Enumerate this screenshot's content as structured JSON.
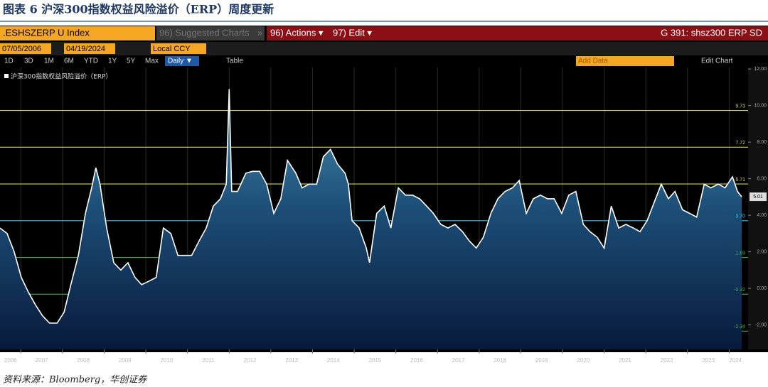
{
  "header": {
    "title": "图表 6 沪深300指数权益风险溢价（ERP）周度更新"
  },
  "ui": {
    "index_field": ".ESHSZERP U Index",
    "suggested": "96) Suggested Charts",
    "more": "»",
    "actions": "96) Actions ▾",
    "edit": "97) Edit ▾",
    "chart_id": "G 391: shsz300 ERP SD",
    "start_date": "07/05/2006",
    "end_date": "04/19/2024",
    "currency": "Local CCY",
    "periods": [
      "1D",
      "3D",
      "1M",
      "6M",
      "YTD",
      "1Y",
      "5Y",
      "Max"
    ],
    "frequency": "Daily ▼",
    "table": "Table",
    "add_data": "Add Data",
    "edit_chart": "Edit Chart"
  },
  "chart_data": {
    "type": "area-line",
    "x": [
      2006.5,
      2006.67,
      2006.84,
      2007.01,
      2007.18,
      2007.35,
      2007.52,
      2007.69,
      2007.87,
      2008.04,
      2008.2,
      2008.38,
      2008.55,
      2008.7,
      2008.8,
      2008.9,
      2009.06,
      2009.23,
      2009.4,
      2009.57,
      2009.74,
      2009.9,
      2010.08,
      2010.25,
      2010.42,
      2010.6,
      2010.77,
      2010.94,
      2011.1,
      2011.28,
      2011.45,
      2011.62,
      2011.79,
      2011.93,
      2012.0,
      2012.06,
      2012.2,
      2012.4,
      2012.56,
      2012.73,
      2012.9,
      2013.07,
      2013.24,
      2013.4,
      2013.6,
      2013.75,
      2013.92,
      2014.1,
      2014.26,
      2014.43,
      2014.6,
      2014.78,
      2014.86,
      2014.95,
      2015.12,
      2015.29,
      2015.37,
      2015.54,
      2015.72,
      2015.88,
      2016.06,
      2016.23,
      2016.4,
      2016.57,
      2016.74,
      2016.9,
      2017.08,
      2017.25,
      2017.42,
      2017.6,
      2017.76,
      2017.93,
      2018.1,
      2018.28,
      2018.45,
      2018.62,
      2018.8,
      2018.96,
      2019.13,
      2019.3,
      2019.47,
      2019.64,
      2019.8,
      2019.98,
      2020.15,
      2020.32,
      2020.5,
      2020.66,
      2020.83,
      2021.0,
      2021.17,
      2021.35,
      2021.52,
      2021.7,
      2021.86,
      2022.03,
      2022.2,
      2022.37,
      2022.54,
      2022.7,
      2022.88,
      2023.05,
      2023.22,
      2023.4,
      2023.56,
      2023.74,
      2023.9,
      2024.08,
      2024.2,
      2024.3
    ],
    "series": [
      {
        "name": "沪深300指数权益风险溢价（ERP）",
        "color": "#ffffff",
        "values": [
          3.3,
          3.0,
          2.0,
          0.6,
          -0.2,
          -0.9,
          -1.5,
          -1.9,
          -1.9,
          -1.3,
          0.2,
          1.8,
          4.1,
          5.5,
          6.6,
          5.7,
          3.3,
          1.4,
          1.0,
          1.4,
          0.6,
          0.2,
          0.4,
          0.6,
          3.3,
          3.0,
          1.8,
          1.8,
          1.8,
          2.6,
          3.3,
          4.5,
          4.9,
          5.7,
          10.9,
          5.3,
          5.3,
          6.3,
          6.4,
          6.4,
          5.7,
          4.1,
          4.9,
          7.0,
          6.3,
          5.5,
          5.7,
          5.7,
          7.2,
          7.6,
          6.8,
          6.3,
          5.7,
          3.7,
          3.3,
          2.2,
          1.4,
          4.1,
          4.5,
          3.3,
          5.5,
          5.1,
          5.1,
          4.9,
          4.5,
          4.1,
          3.5,
          3.3,
          3.5,
          3.1,
          2.6,
          2.2,
          2.8,
          4.1,
          4.9,
          5.3,
          5.5,
          5.9,
          4.1,
          4.9,
          5.1,
          4.9,
          4.9,
          4.1,
          5.1,
          5.3,
          3.5,
          3.1,
          2.8,
          2.2,
          4.5,
          3.3,
          3.5,
          3.3,
          3.1,
          3.7,
          4.7,
          5.7,
          4.9,
          5.3,
          4.3,
          4.1,
          3.9,
          5.7,
          5.5,
          5.7,
          5.5,
          6.1,
          5.3,
          5.01
        ]
      }
    ],
    "xlim": [
      2006.5,
      2024.3
    ],
    "xticks": [
      2006,
      2007,
      2008,
      2009,
      2010,
      2011,
      2012,
      2013,
      2014,
      2015,
      2016,
      2017,
      2018,
      2019,
      2020,
      2021,
      2022,
      2023,
      2024
    ],
    "ylim": [
      -3.3,
      12.2
    ],
    "yticks": [
      {
        "value": 12,
        "label": "12.00"
      },
      {
        "value": 10,
        "label": "10.00"
      },
      {
        "value": 8,
        "label": "8.00"
      },
      {
        "value": 6,
        "label": "6.00"
      },
      {
        "value": 4,
        "label": "4.00"
      },
      {
        "value": 2,
        "label": "2.00"
      },
      {
        "value": 0,
        "label": "0.00"
      },
      {
        "value": -2,
        "label": "-2.00"
      }
    ],
    "hlines": [
      {
        "value": 9.73,
        "color": "#d8d84a"
      },
      {
        "value": 7.72,
        "color": "#d8d84a"
      },
      {
        "value": 5.71,
        "color": "#d8d84a"
      },
      {
        "value": 3.7,
        "label": "3.70",
        "color": "#3ec6f2"
      },
      {
        "value": 1.69,
        "color": "#3cb043"
      },
      {
        "value": -0.32,
        "color": "#3cb043"
      },
      {
        "value": -2.34,
        "color": "#3cb043"
      }
    ]
  },
  "footer": {
    "source": "资料来源：Bloomberg，华创证券"
  }
}
